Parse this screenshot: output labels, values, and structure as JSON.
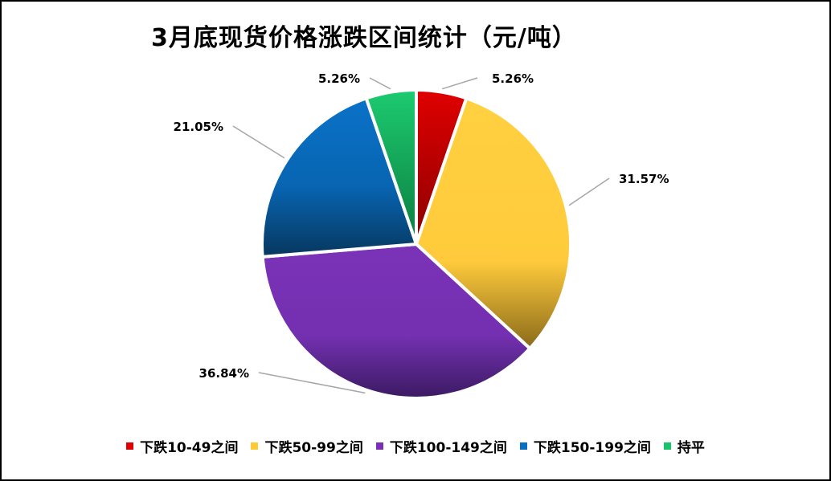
{
  "chart_data": {
    "type": "pie",
    "title": "3月底现货价格涨跌区间统计（元/吨）",
    "categories": [
      "下跌10-49之间",
      "下跌50-99之间",
      "下跌100-149之间",
      "下跌150-199之间",
      "持平"
    ],
    "values": [
      5.26,
      31.57,
      36.84,
      21.05,
      5.26
    ],
    "value_labels": [
      "5.26%",
      "31.57%",
      "36.84%",
      "21.05%",
      "5.26%"
    ],
    "colors": [
      "#e00000",
      "#ffc933",
      "#7b2fb5",
      "#0a6fc2",
      "#18c46a"
    ],
    "legend_position": "bottom",
    "start_angle_deg": 0,
    "direction": "clockwise"
  }
}
